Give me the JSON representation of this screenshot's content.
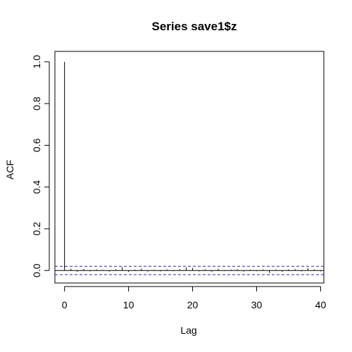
{
  "chart_data": {
    "type": "bar",
    "title": "Series  save1$z",
    "xlabel": "Lag",
    "ylabel": "ACF",
    "xlim": [
      -1.5,
      40.5
    ],
    "ylim": [
      -0.06,
      1.05
    ],
    "x_ticks": [
      0,
      10,
      20,
      30,
      40
    ],
    "x_tick_labels": [
      "0",
      "10",
      "20",
      "30",
      "40"
    ],
    "y_ticks": [
      0.0,
      0.2,
      0.4,
      0.6,
      0.8,
      1.0
    ],
    "y_tick_labels": [
      "0.0",
      "0.2",
      "0.4",
      "0.6",
      "0.8",
      "1.0"
    ],
    "lags": [
      0,
      1,
      2,
      3,
      4,
      5,
      6,
      7,
      8,
      9,
      10,
      11,
      12,
      13,
      14,
      15,
      16,
      17,
      18,
      19,
      20,
      21,
      22,
      23,
      24,
      25,
      26,
      27,
      28,
      29,
      30,
      31,
      32,
      33,
      34,
      35,
      36,
      37,
      38,
      39,
      40
    ],
    "values": [
      1.0,
      0.008,
      -0.006,
      0.007,
      -0.004,
      0.005,
      0.003,
      -0.005,
      0.006,
      0.015,
      -0.007,
      0.004,
      0.009,
      -0.005,
      0.003,
      -0.004,
      0.005,
      -0.003,
      0.006,
      0.014,
      0.012,
      -0.004,
      0.005,
      -0.006,
      0.008,
      -0.003,
      0.004,
      0.006,
      -0.005,
      0.004,
      -0.003,
      0.005,
      -0.012,
      0.004,
      -0.006,
      0.005,
      0.007,
      -0.004,
      0.012,
      0.005,
      -0.004
    ],
    "conf_bounds": [
      0.02,
      -0.02
    ],
    "zero_line": 0,
    "colors": {
      "bars": "#000000",
      "zero_line": "#000000",
      "conf_lines": "#2a2aa6",
      "frame": "#000000"
    },
    "grid": false,
    "legend": "none"
  }
}
